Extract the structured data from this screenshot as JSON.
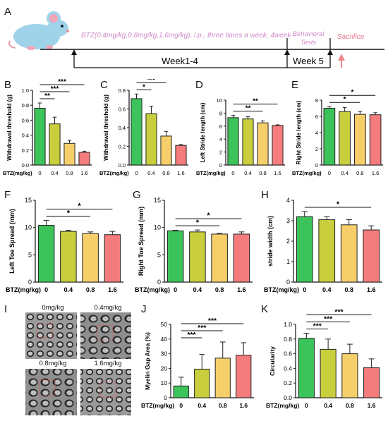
{
  "panel_letters": [
    "A",
    "B",
    "C",
    "D",
    "E",
    "F",
    "G",
    "H",
    "I",
    "J",
    "K"
  ],
  "timeline": {
    "protocol": "BTZ(0.4mg/kg,0.8mg/kg,1.6mg/kg), i.p., three times a week, 4week",
    "behavioral": [
      "Behavioral",
      "Tests"
    ],
    "sacrifice": "Sacrifice",
    "week1": "Week1-4",
    "week5": "Week 5",
    "colors": {
      "protocol": "#cf8ac7",
      "sacrifice": "#e87a8c",
      "arrow": "#f08a8a"
    }
  },
  "tem": {
    "labels": [
      "0mg/kg",
      "0.4mg/kg",
      "0.8mg/kg",
      "1.6mg/kg"
    ]
  },
  "bar_colors": [
    "#3cc35a",
    "#c9cf3c",
    "#f6cf6a",
    "#f47c7c"
  ],
  "chart_data": [
    {
      "id": "B",
      "type": "bar",
      "categories": [
        "0",
        "0.4",
        "0.8",
        "1.6"
      ],
      "values": [
        0.76,
        0.55,
        0.29,
        0.17
      ],
      "errors": [
        0.07,
        0.09,
        0.04,
        0.015
      ],
      "ylabel": "Withdrawal threshold (g)",
      "xlabel": "BTZ(mg/kg)",
      "ylim": [
        0,
        1.0
      ],
      "yticks": [
        "0.0",
        "0.2",
        "0.4",
        "0.6",
        "0.8",
        "1.0"
      ],
      "sig": [
        "**",
        "***",
        "***"
      ]
    },
    {
      "id": "C",
      "type": "bar",
      "categories": [
        "0",
        "0.4",
        "0.8",
        "1.6"
      ],
      "values": [
        0.71,
        0.55,
        0.31,
        0.21
      ],
      "errors": [
        0.05,
        0.08,
        0.05,
        0.01
      ],
      "ylabel": "Withdrawal threshold (g)",
      "xlabel": "BTZ(mg/kg)",
      "ylim": [
        0,
        0.8
      ],
      "yticks": [
        "0.0",
        "0.2",
        "0.4",
        "0.6",
        "0.8"
      ],
      "sig": [
        "*",
        "***",
        "***"
      ]
    },
    {
      "id": "D",
      "type": "bar",
      "categories": [
        "0",
        "0.4",
        "0.8",
        "1.6"
      ],
      "values": [
        7.3,
        7.1,
        6.5,
        6.1
      ],
      "errors": [
        0.35,
        0.35,
        0.3,
        0.1
      ],
      "ylabel": "Left Stride length (cm)",
      "xlabel": "BTZ(mg/kg)",
      "ylim": [
        0,
        10
      ],
      "yticks": [
        "0",
        "2",
        "4",
        "6",
        "8",
        "10"
      ],
      "sig": [
        "**",
        "**"
      ]
    },
    {
      "id": "E",
      "type": "bar",
      "categories": [
        "0",
        "0.4",
        "0.8",
        "1.6"
      ],
      "values": [
        7.0,
        6.6,
        6.25,
        6.2
      ],
      "errors": [
        0.2,
        0.5,
        0.35,
        0.25
      ],
      "ylabel": "Right Stride length (cm)",
      "xlabel": "BTZ(mg/kg)",
      "ylim": [
        0,
        8
      ],
      "yticks": [
        "0",
        "2",
        "4",
        "6",
        "8"
      ],
      "sig": [
        "*",
        "*"
      ]
    },
    {
      "id": "F",
      "type": "bar",
      "categories": [
        "0",
        "0.4",
        "0.8",
        "1.6"
      ],
      "values": [
        10.4,
        9.3,
        8.9,
        8.7
      ],
      "errors": [
        0.9,
        0.2,
        0.3,
        0.6
      ],
      "ylabel": "Left Toe Spread  (mm)",
      "xlabel": "BTZ(mg/kg)",
      "ylim": [
        0,
        15
      ],
      "yticks": [
        "0",
        "5",
        "10",
        "15"
      ],
      "sig": [
        "*",
        "*"
      ]
    },
    {
      "id": "G",
      "type": "bar",
      "categories": [
        "0",
        "0.4",
        "0.8",
        "1.6"
      ],
      "values": [
        9.4,
        9.2,
        8.8,
        8.8
      ],
      "errors": [
        0.1,
        0.35,
        0.15,
        0.4
      ],
      "ylabel": "Right Toe Spread  (mm)",
      "xlabel": "BTZ(mg/kg)",
      "ylim": [
        0,
        15
      ],
      "yticks": [
        "0",
        "5",
        "10",
        "15"
      ],
      "sig": [
        "*",
        "*"
      ]
    },
    {
      "id": "H",
      "type": "bar",
      "categories": [
        "0",
        "0.4",
        "0.8",
        "1.6"
      ],
      "values": [
        3.2,
        3.05,
        2.8,
        2.55
      ],
      "errors": [
        0.25,
        0.15,
        0.25,
        0.2
      ],
      "ylabel": "stride width (cm)",
      "xlabel": "BTZ(mg/kg)",
      "ylim": [
        0,
        4
      ],
      "yticks": [
        "0",
        "1",
        "2",
        "3",
        "4"
      ],
      "sig": [
        "*"
      ]
    },
    {
      "id": "J",
      "type": "bar",
      "categories": [
        "0",
        "0.4",
        "0.8",
        "1.6"
      ],
      "values": [
        8,
        19.5,
        27,
        29
      ],
      "errors": [
        6,
        10,
        11,
        8.5
      ],
      "ylabel": "Myelin Gap Area (%)",
      "xlabel": "BTZ(mg/kg)",
      "ylim": [
        0,
        50
      ],
      "yticks": [
        "0",
        "10",
        "20",
        "30",
        "40",
        "50"
      ],
      "sig": [
        "***",
        "***",
        "***"
      ]
    },
    {
      "id": "K",
      "type": "bar",
      "categories": [
        "0",
        "0.4",
        "0.8",
        "1.6"
      ],
      "values": [
        0.81,
        0.66,
        0.6,
        0.41
      ],
      "errors": [
        0.07,
        0.14,
        0.13,
        0.12
      ],
      "ylabel": "Circularity",
      "xlabel": "BTZ(mg/kg)",
      "ylim": [
        0,
        1.0
      ],
      "yticks": [
        "0.0",
        "0.2",
        "0.4",
        "0.6",
        "0.8",
        "1.0"
      ],
      "sig": [
        "***",
        "***",
        "***"
      ]
    }
  ]
}
